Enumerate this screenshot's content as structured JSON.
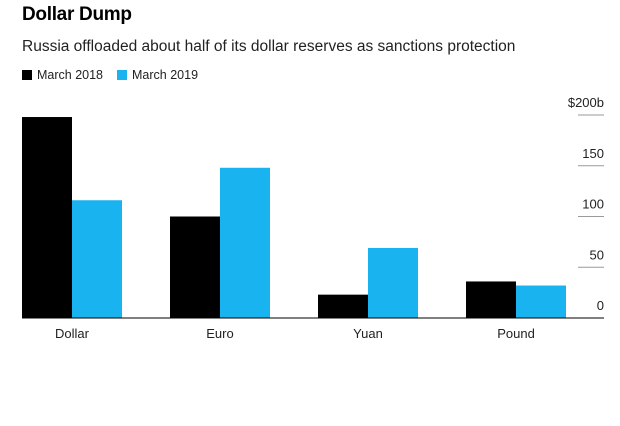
{
  "chart_data": {
    "type": "bar",
    "title": "Dollar Dump",
    "subtitle": "Russia offloaded about half of its dollar reserves as sanctions protection",
    "categories": [
      "Dollar",
      "Euro",
      "Yuan",
      "Pound"
    ],
    "series": [
      {
        "name": "March 2018",
        "color": "#000000",
        "values": [
          198,
          100,
          23,
          36
        ]
      },
      {
        "name": "March 2019",
        "color": "#19b3f0",
        "values": [
          116,
          148,
          69,
          32
        ]
      }
    ],
    "ylim": [
      0,
      200
    ],
    "yticks": [
      {
        "value": 200,
        "label": "$200b"
      },
      {
        "value": 150,
        "label": "150"
      },
      {
        "value": 100,
        "label": "100"
      },
      {
        "value": 50,
        "label": "50"
      },
      {
        "value": 0,
        "label": "0"
      }
    ],
    "legend_position": "top-left",
    "grid": false
  }
}
